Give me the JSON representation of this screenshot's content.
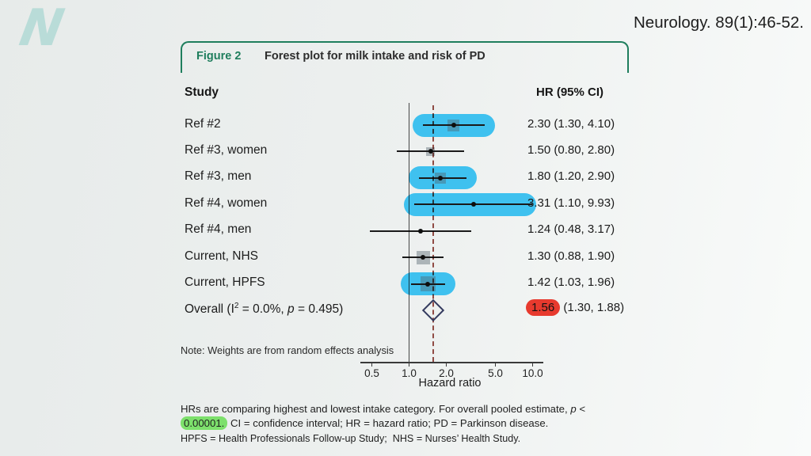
{
  "brand": {
    "logo_letter": "N",
    "logo_color": "#b9dcd8"
  },
  "citation": "Neurology. 89(1):46-52.",
  "figure": {
    "tag": "Figure 2",
    "title": "Forest plot for milk intake and risk of PD",
    "col_study": "Study",
    "col_hr": "HR (95% CI)",
    "note": "Note: Weights are from random effects analysis",
    "accent_green": "#1f7e5d",
    "highlight_blue": "#3fc1ef",
    "highlight_red": "#e73a2e",
    "highlight_green": "#7de06c",
    "dashed_line_color": "#9a4f48",
    "diamond_color": "#333a5e"
  },
  "chart_data": {
    "type": "scatter",
    "variant": "forest-plot",
    "title": "Forest plot for milk intake and risk of PD",
    "xlabel": "Hazard ratio",
    "x_scale": "log10",
    "xlim": [
      0.42,
      11.5
    ],
    "x_ticks": [
      0.5,
      1.0,
      2.0,
      5.0,
      10.0
    ],
    "x_tick_labels": [
      "0.5",
      "1.0",
      "2.0",
      "5.0",
      "10.0"
    ],
    "grid": false,
    "reference_line": 1.0,
    "pooled_line": 1.56,
    "studies": [
      {
        "label": "Ref #2",
        "hr": 2.3,
        "ci_low": 1.3,
        "ci_high": 4.1,
        "hr_text": "2.30 (1.30, 4.10)",
        "highlighted": true,
        "marker_size": 15
      },
      {
        "label": "Ref #3, women",
        "hr": 1.5,
        "ci_low": 0.8,
        "ci_high": 2.8,
        "hr_text": "1.50 (0.80, 2.80)",
        "highlighted": false,
        "marker_size": 11
      },
      {
        "label": "Ref #3, men",
        "hr": 1.8,
        "ci_low": 1.2,
        "ci_high": 2.9,
        "hr_text": "1.80 (1.20, 2.90)",
        "highlighted": true,
        "marker_size": 14
      },
      {
        "label": "Ref #4, women",
        "hr": 3.31,
        "ci_low": 1.1,
        "ci_high": 9.93,
        "hr_text": "3.31 (1.10, 9.93)",
        "highlighted": true,
        "marker_size": 0
      },
      {
        "label": "Ref #4, men",
        "hr": 1.24,
        "ci_low": 0.48,
        "ci_high": 3.17,
        "hr_text": "1.24 (0.48, 3.17)",
        "highlighted": false,
        "marker_size": 0
      },
      {
        "label": "Current, NHS",
        "hr": 1.3,
        "ci_low": 0.88,
        "ci_high": 1.9,
        "hr_text": "1.30 (0.88, 1.90)",
        "highlighted": false,
        "marker_size": 17
      },
      {
        "label": "Current, HPFS",
        "hr": 1.42,
        "ci_low": 1.03,
        "ci_high": 1.96,
        "hr_text": "1.42 (1.03, 1.96)",
        "highlighted": true,
        "marker_size": 19
      }
    ],
    "overall": {
      "label_pre": "Overall (I",
      "label_sup": "2",
      "label_mid": " = 0.0%, ",
      "label_p": "p",
      "label_end": " = 0.495)",
      "hr": 1.56,
      "ci_low": 1.3,
      "ci_high": 1.88,
      "hr_value_text": "1.56",
      "hr_ci_text": " (1.30, 1.88)"
    }
  },
  "caption": {
    "line1_pre": "HRs are comparing highest and lowest intake category. For overall pooled estimate, ",
    "line1_p": "p",
    "line1_end": " <",
    "line2_highlight": "0.00001.",
    "line2_rest": " CI = confidence interval; HR = hazard ratio; PD = Parkinson disease.",
    "line3": "HPFS = Health Professionals Follow-up Study;  NHS = Nurses’ Health Study."
  }
}
